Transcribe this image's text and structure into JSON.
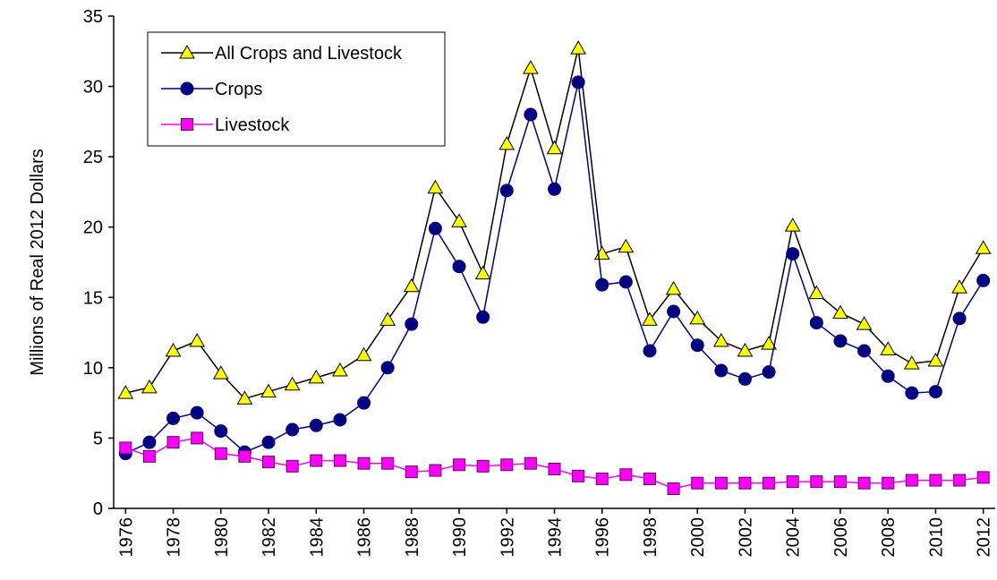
{
  "chart_data": {
    "type": "line",
    "y_label": "Millions of Real 2012 Dollars",
    "x": [
      1976,
      1977,
      1978,
      1979,
      1980,
      1981,
      1982,
      1983,
      1984,
      1985,
      1986,
      1987,
      1988,
      1989,
      1990,
      1991,
      1992,
      1993,
      1994,
      1995,
      1996,
      1997,
      1998,
      1999,
      2000,
      2001,
      2002,
      2003,
      2004,
      2005,
      2006,
      2007,
      2008,
      2009,
      2010,
      2011,
      2012
    ],
    "xlim": [
      1975.5,
      2012.5
    ],
    "xticks": [
      1976,
      1978,
      1980,
      1982,
      1984,
      1986,
      1988,
      1990,
      1992,
      1994,
      1996,
      1998,
      2000,
      2002,
      2004,
      2006,
      2008,
      2010,
      2012
    ],
    "ylim": [
      0,
      35
    ],
    "yticks": [
      0,
      5,
      10,
      15,
      20,
      25,
      30,
      35
    ],
    "legend": "upper left",
    "series": [
      {
        "name": "All Crops and Livestock",
        "color": "#000000",
        "marker": "triangle",
        "marker_color": "#ffff00",
        "values": [
          8.2,
          8.6,
          11.2,
          11.9,
          9.6,
          7.8,
          8.3,
          8.8,
          9.3,
          9.8,
          10.9,
          13.4,
          15.8,
          22.8,
          20.4,
          16.7,
          25.9,
          31.3,
          25.6,
          32.7,
          18.1,
          18.6,
          13.4,
          15.6,
          13.5,
          11.9,
          11.2,
          11.7,
          20.1,
          15.3,
          13.9,
          13.1,
          11.3,
          10.3,
          10.5,
          15.7,
          18.5
        ]
      },
      {
        "name": "Crops",
        "color": "#000080",
        "marker": "circle",
        "marker_color": "#000080",
        "values": [
          3.9,
          4.7,
          6.4,
          6.8,
          5.5,
          4.0,
          4.7,
          5.6,
          5.9,
          6.3,
          7.5,
          10.0,
          13.1,
          19.9,
          17.2,
          13.6,
          22.6,
          28.0,
          22.7,
          30.3,
          15.9,
          16.1,
          11.2,
          14.0,
          11.6,
          9.8,
          9.2,
          9.7,
          18.1,
          13.2,
          11.9,
          11.2,
          9.4,
          8.2,
          8.3,
          13.5,
          16.2
        ]
      },
      {
        "name": "Livestock",
        "color": "#ff00ff",
        "marker": "square",
        "marker_color": "#ff00ff",
        "values": [
          4.3,
          3.7,
          4.7,
          5.0,
          3.9,
          3.7,
          3.3,
          3.0,
          3.4,
          3.4,
          3.2,
          3.2,
          2.6,
          2.7,
          3.1,
          3.0,
          3.1,
          3.2,
          2.8,
          2.3,
          2.1,
          2.4,
          2.1,
          1.4,
          1.8,
          1.8,
          1.8,
          1.8,
          1.9,
          1.9,
          1.9,
          1.8,
          1.8,
          2.0,
          2.0,
          2.0,
          2.2
        ]
      }
    ]
  }
}
